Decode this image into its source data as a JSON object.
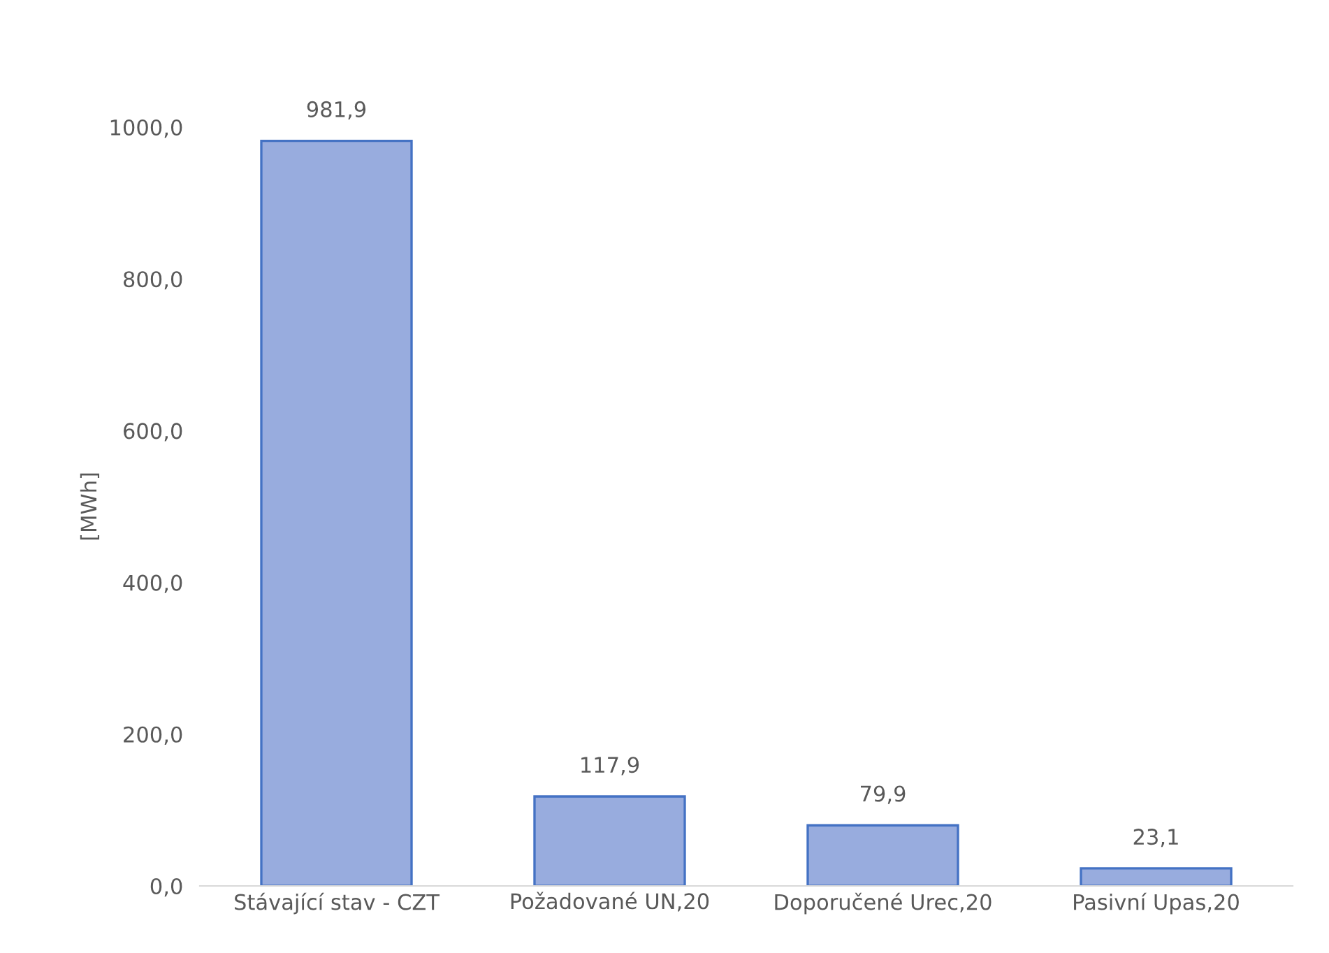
{
  "chart_data": {
    "type": "bar",
    "ylabel": "[MWh]",
    "categories": [
      "Stávající stav - CZT",
      "Požadované UN,20",
      "Doporučené Urec,20",
      "Pasivní Upas,20"
    ],
    "values": [
      981.9,
      117.9,
      79.9,
      23.1
    ],
    "value_labels": [
      "981,9",
      "117,9",
      "79,9",
      "23,1"
    ],
    "color": "#98acde",
    "ylim": [
      0,
      1000
    ],
    "yticks": [
      {
        "value": 0,
        "label": "0,0"
      },
      {
        "value": 200,
        "label": "200,0"
      },
      {
        "value": 400,
        "label": "400,0"
      },
      {
        "value": 600,
        "label": "600,0"
      },
      {
        "value": 800,
        "label": "800,0"
      },
      {
        "value": 1000,
        "label": "1000,0"
      }
    ],
    "grid": false
  }
}
